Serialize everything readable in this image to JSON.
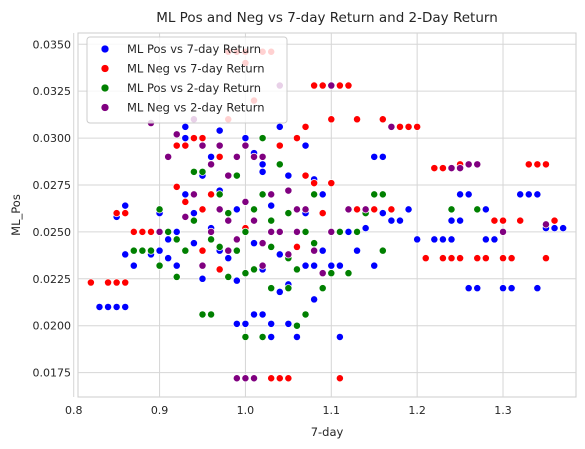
{
  "chart_data": {
    "type": "scatter",
    "title": "ML Pos and Neg vs 7-day Return and 2-Day Return",
    "xlabel": "7-day",
    "ylabel": "ML_Pos",
    "xlim": [
      0.805,
      1.385
    ],
    "ylim": [
      0.0162,
      0.0356
    ],
    "xticks": [
      "0.8",
      "0.9",
      "1.0",
      "1.1",
      "1.2",
      "1.3"
    ],
    "yticks": [
      "0.0175",
      "0.0200",
      "0.0225",
      "0.0250",
      "0.0275",
      "0.0300",
      "0.0325",
      "0.0350"
    ],
    "grid": true,
    "legend_position": "top-left",
    "series": [
      {
        "name": "ML Pos vs 7-day Return",
        "color": "#0000ff",
        "points": [
          [
            0.83,
            0.021
          ],
          [
            0.84,
            0.021
          ],
          [
            0.85,
            0.021
          ],
          [
            0.86,
            0.021
          ],
          [
            0.85,
            0.0258
          ],
          [
            0.86,
            0.0264
          ],
          [
            0.86,
            0.0238
          ],
          [
            0.87,
            0.0232
          ],
          [
            0.88,
            0.025
          ],
          [
            0.89,
            0.0238
          ],
          [
            0.9,
            0.024
          ],
          [
            0.9,
            0.026
          ],
          [
            0.91,
            0.0236
          ],
          [
            0.91,
            0.0246
          ],
          [
            0.92,
            0.0232
          ],
          [
            0.92,
            0.025
          ],
          [
            0.93,
            0.0306
          ],
          [
            0.93,
            0.03
          ],
          [
            0.93,
            0.027
          ],
          [
            0.94,
            0.026
          ],
          [
            0.94,
            0.0244
          ],
          [
            0.95,
            0.0225
          ],
          [
            0.95,
            0.028
          ],
          [
            0.96,
            0.029
          ],
          [
            0.96,
            0.0252
          ],
          [
            0.97,
            0.024
          ],
          [
            0.97,
            0.0304
          ],
          [
            0.98,
            0.0236
          ],
          [
            0.98,
            0.026
          ],
          [
            0.99,
            0.0201
          ],
          [
            0.99,
            0.0224
          ],
          [
            1.0,
            0.0201
          ],
          [
            1.0,
            0.0266
          ],
          [
            1.0,
            0.03
          ],
          [
            1.01,
            0.0206
          ],
          [
            1.01,
            0.0244
          ],
          [
            1.02,
            0.0206
          ],
          [
            1.02,
            0.023
          ],
          [
            1.02,
            0.0286
          ],
          [
            1.03,
            0.0201
          ],
          [
            1.03,
            0.0194
          ],
          [
            1.03,
            0.0264
          ],
          [
            1.04,
            0.0306
          ],
          [
            1.04,
            0.0238
          ],
          [
            1.05,
            0.0201
          ],
          [
            1.05,
            0.0222
          ],
          [
            1.05,
            0.028
          ],
          [
            1.06,
            0.0194
          ],
          [
            1.06,
            0.025
          ],
          [
            1.07,
            0.026
          ],
          [
            1.07,
            0.0296
          ],
          [
            1.07,
            0.0232
          ],
          [
            1.08,
            0.0232
          ],
          [
            1.08,
            0.0278
          ],
          [
            1.09,
            0.024
          ],
          [
            1.09,
            0.027
          ],
          [
            1.1,
            0.025
          ],
          [
            1.1,
            0.0232
          ],
          [
            1.11,
            0.0232
          ],
          [
            1.11,
            0.0194
          ],
          [
            1.12,
            0.025
          ],
          [
            1.13,
            0.024
          ],
          [
            1.13,
            0.025
          ],
          [
            1.14,
            0.0252
          ],
          [
            1.15,
            0.0232
          ],
          [
            1.15,
            0.029
          ],
          [
            1.16,
            0.029
          ],
          [
            1.16,
            0.026
          ],
          [
            1.17,
            0.0256
          ],
          [
            1.18,
            0.0256
          ],
          [
            1.19,
            0.0262
          ],
          [
            1.2,
            0.0246
          ],
          [
            1.22,
            0.0246
          ],
          [
            1.23,
            0.0246
          ],
          [
            1.24,
            0.0246
          ],
          [
            1.24,
            0.0256
          ],
          [
            1.25,
            0.0256
          ],
          [
            1.25,
            0.027
          ],
          [
            1.26,
            0.027
          ],
          [
            1.26,
            0.022
          ],
          [
            1.27,
            0.022
          ],
          [
            1.28,
            0.0262
          ],
          [
            1.28,
            0.0246
          ],
          [
            1.29,
            0.0246
          ],
          [
            1.3,
            0.022
          ],
          [
            1.31,
            0.022
          ],
          [
            1.32,
            0.027
          ],
          [
            1.33,
            0.027
          ],
          [
            1.34,
            0.027
          ],
          [
            1.34,
            0.022
          ],
          [
            1.35,
            0.0252
          ],
          [
            1.36,
            0.0252
          ],
          [
            1.37,
            0.0252
          ],
          [
            1.02,
            0.0282
          ],
          [
            0.99,
            0.0262
          ],
          [
            1.04,
            0.0218
          ],
          [
            1.08,
            0.0214
          ],
          [
            1.01,
            0.0292
          ],
          [
            0.97,
            0.0272
          ]
        ]
      },
      {
        "name": "ML Neg vs 7-day Return",
        "color": "#ff0000",
        "points": [
          [
            0.82,
            0.0223
          ],
          [
            0.84,
            0.0223
          ],
          [
            0.85,
            0.0223
          ],
          [
            0.86,
            0.0223
          ],
          [
            0.85,
            0.026
          ],
          [
            0.86,
            0.026
          ],
          [
            0.87,
            0.025
          ],
          [
            0.88,
            0.025
          ],
          [
            0.89,
            0.025
          ],
          [
            0.9,
            0.025
          ],
          [
            0.91,
            0.025
          ],
          [
            0.92,
            0.0296
          ],
          [
            0.93,
            0.0296
          ],
          [
            0.92,
            0.0274
          ],
          [
            0.93,
            0.0266
          ],
          [
            0.94,
            0.0256
          ],
          [
            0.94,
            0.03
          ],
          [
            0.95,
            0.03
          ],
          [
            0.95,
            0.0262
          ],
          [
            0.96,
            0.027
          ],
          [
            0.97,
            0.029
          ],
          [
            0.98,
            0.031
          ],
          [
            0.98,
            0.0346
          ],
          [
            0.99,
            0.0346
          ],
          [
            1.0,
            0.0346
          ],
          [
            1.0,
            0.034
          ],
          [
            1.01,
            0.032
          ],
          [
            1.02,
            0.0346
          ],
          [
            1.03,
            0.0346
          ],
          [
            1.03,
            0.0172
          ],
          [
            1.04,
            0.0172
          ],
          [
            1.05,
            0.0172
          ],
          [
            1.06,
            0.03
          ],
          [
            1.07,
            0.0306
          ],
          [
            1.07,
            0.028
          ],
          [
            1.08,
            0.0276
          ],
          [
            1.08,
            0.0328
          ],
          [
            1.09,
            0.0328
          ],
          [
            1.1,
            0.0276
          ],
          [
            1.1,
            0.031
          ],
          [
            1.11,
            0.0328
          ],
          [
            1.12,
            0.0328
          ],
          [
            1.11,
            0.0172
          ],
          [
            1.12,
            0.0262
          ],
          [
            1.13,
            0.0262
          ],
          [
            1.13,
            0.031
          ],
          [
            1.14,
            0.0262
          ],
          [
            1.15,
            0.0262
          ],
          [
            1.16,
            0.031
          ],
          [
            1.17,
            0.0262
          ],
          [
            1.18,
            0.0306
          ],
          [
            1.19,
            0.0306
          ],
          [
            1.2,
            0.0306
          ],
          [
            1.21,
            0.0236
          ],
          [
            1.22,
            0.0284
          ],
          [
            1.23,
            0.0284
          ],
          [
            1.23,
            0.0236
          ],
          [
            1.24,
            0.0236
          ],
          [
            1.25,
            0.0286
          ],
          [
            1.25,
            0.0236
          ],
          [
            1.26,
            0.0286
          ],
          [
            1.27,
            0.0236
          ],
          [
            1.28,
            0.0236
          ],
          [
            1.29,
            0.0256
          ],
          [
            1.3,
            0.0256
          ],
          [
            1.3,
            0.0236
          ],
          [
            1.31,
            0.0236
          ],
          [
            1.32,
            0.0256
          ],
          [
            1.33,
            0.0286
          ],
          [
            1.34,
            0.0286
          ],
          [
            1.35,
            0.0286
          ],
          [
            1.35,
            0.0236
          ],
          [
            1.36,
            0.0256
          ],
          [
            1.04,
            0.0296
          ],
          [
            0.97,
            0.023
          ],
          [
            1.0,
            0.0252
          ],
          [
            1.06,
            0.0242
          ],
          [
            0.95,
            0.024
          ],
          [
            1.09,
            0.026
          ]
        ]
      },
      {
        "name": "ML Pos vs 2-day Return",
        "color": "#008000",
        "points": [
          [
            0.87,
            0.024
          ],
          [
            0.88,
            0.024
          ],
          [
            0.89,
            0.024
          ],
          [
            0.9,
            0.0232
          ],
          [
            0.9,
            0.0262
          ],
          [
            0.91,
            0.025
          ],
          [
            0.92,
            0.0246
          ],
          [
            0.93,
            0.024
          ],
          [
            0.94,
            0.0282
          ],
          [
            0.95,
            0.0282
          ],
          [
            0.95,
            0.0206
          ],
          [
            0.96,
            0.0206
          ],
          [
            0.96,
            0.0246
          ],
          [
            0.97,
            0.0242
          ],
          [
            0.97,
            0.027
          ],
          [
            0.98,
            0.0226
          ],
          [
            0.98,
            0.026
          ],
          [
            0.99,
            0.024
          ],
          [
            1.0,
            0.0194
          ],
          [
            1.0,
            0.025
          ],
          [
            1.01,
            0.0262
          ],
          [
            1.01,
            0.023
          ],
          [
            1.02,
            0.0194
          ],
          [
            1.02,
            0.027
          ],
          [
            1.03,
            0.0256
          ],
          [
            1.03,
            0.022
          ],
          [
            1.04,
            0.025
          ],
          [
            1.04,
            0.0286
          ],
          [
            1.05,
            0.0236
          ],
          [
            1.05,
            0.022
          ],
          [
            1.06,
            0.02
          ],
          [
            1.06,
            0.023
          ],
          [
            1.07,
            0.0206
          ],
          [
            1.07,
            0.025
          ],
          [
            1.08,
            0.0244
          ],
          [
            1.08,
            0.027
          ],
          [
            1.09,
            0.022
          ],
          [
            1.1,
            0.0228
          ],
          [
            1.11,
            0.025
          ],
          [
            1.12,
            0.0228
          ],
          [
            1.13,
            0.025
          ],
          [
            1.14,
            0.026
          ],
          [
            1.15,
            0.027
          ],
          [
            1.16,
            0.027
          ],
          [
            1.16,
            0.024
          ],
          [
            1.24,
            0.0262
          ],
          [
            1.27,
            0.0262
          ],
          [
            0.99,
            0.028
          ],
          [
            1.02,
            0.03
          ],
          [
            0.94,
            0.0256
          ],
          [
            1.0,
            0.0228
          ],
          [
            1.03,
            0.0242
          ],
          [
            1.05,
            0.026
          ],
          [
            0.92,
            0.0226
          ]
        ]
      },
      {
        "name": "ML Neg vs 2-day Return",
        "color": "#800080",
        "points": [
          [
            0.89,
            0.0308
          ],
          [
            0.9,
            0.025
          ],
          [
            0.91,
            0.029
          ],
          [
            0.92,
            0.0302
          ],
          [
            0.93,
            0.0258
          ],
          [
            0.94,
            0.031
          ],
          [
            0.94,
            0.027
          ],
          [
            0.95,
            0.0296
          ],
          [
            0.96,
            0.0286
          ],
          [
            0.96,
            0.025
          ],
          [
            0.97,
            0.0296
          ],
          [
            0.97,
            0.0262
          ],
          [
            0.98,
            0.028
          ],
          [
            0.98,
            0.024
          ],
          [
            0.99,
            0.0172
          ],
          [
            0.99,
            0.029
          ],
          [
            1.0,
            0.0296
          ],
          [
            1.0,
            0.0172
          ],
          [
            1.01,
            0.0172
          ],
          [
            1.01,
            0.029
          ],
          [
            1.01,
            0.0256
          ],
          [
            1.02,
            0.029
          ],
          [
            1.02,
            0.0244
          ],
          [
            1.03,
            0.025
          ],
          [
            1.03,
            0.027
          ],
          [
            1.04,
            0.0328
          ],
          [
            1.04,
            0.025
          ],
          [
            1.05,
            0.0272
          ],
          [
            1.05,
            0.0238
          ],
          [
            1.06,
            0.0262
          ],
          [
            1.06,
            0.025
          ],
          [
            1.07,
            0.0262
          ],
          [
            1.08,
            0.024
          ],
          [
            1.09,
            0.0228
          ],
          [
            1.1,
            0.025
          ],
          [
            1.1,
            0.0328
          ],
          [
            1.12,
            0.0262
          ],
          [
            1.14,
            0.0262
          ],
          [
            1.17,
            0.0306
          ],
          [
            1.24,
            0.0284
          ],
          [
            1.25,
            0.0284
          ],
          [
            1.26,
            0.0286
          ],
          [
            1.27,
            0.0286
          ],
          [
            1.3,
            0.025
          ],
          [
            1.35,
            0.0254
          ],
          [
            0.98,
            0.0256
          ],
          [
            1.0,
            0.0266
          ],
          [
            0.95,
            0.0232
          ],
          [
            1.02,
            0.0232
          ],
          [
            0.99,
            0.0246
          ]
        ]
      }
    ]
  }
}
